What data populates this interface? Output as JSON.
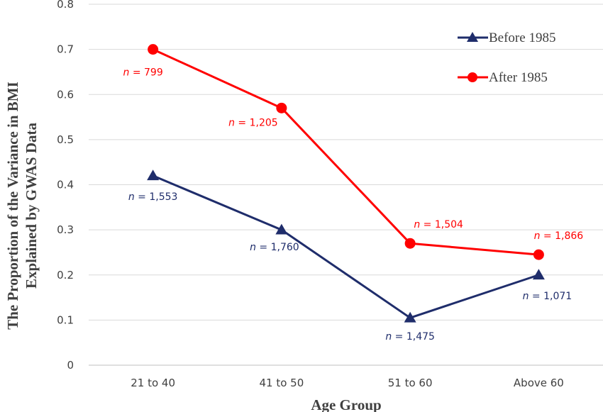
{
  "chart_data": {
    "type": "line",
    "categories": [
      "21 to 40",
      "41 to 50",
      "51 to 60",
      "Above 60"
    ],
    "series": [
      {
        "name": "Before 1985",
        "values": [
          0.42,
          0.3,
          0.105,
          0.2
        ],
        "labels": [
          "1,553",
          "1,760",
          "1,475",
          "1,071"
        ],
        "color": "#1f2d6b",
        "marker": "triangle"
      },
      {
        "name": "After 1985",
        "values": [
          0.7,
          0.57,
          0.27,
          0.245
        ],
        "labels": [
          "799",
          "1,205",
          "1,504",
          "1,866"
        ],
        "color": "#ff0000",
        "marker": "circle"
      }
    ],
    "label_prefix": "n",
    "label_eq": " = ",
    "xlabel": "Age Group",
    "ylabel_lines": [
      "The Proportion of the Variance in BMI",
      "Explained by GWAS Data"
    ],
    "ylim": [
      0,
      0.8
    ],
    "yticks": [
      "0",
      "0.1",
      "0.2",
      "0.3",
      "0.4",
      "0.5",
      "0.6",
      "0.7",
      "0.8"
    ],
    "grid": true,
    "legend_position": "top-right"
  }
}
